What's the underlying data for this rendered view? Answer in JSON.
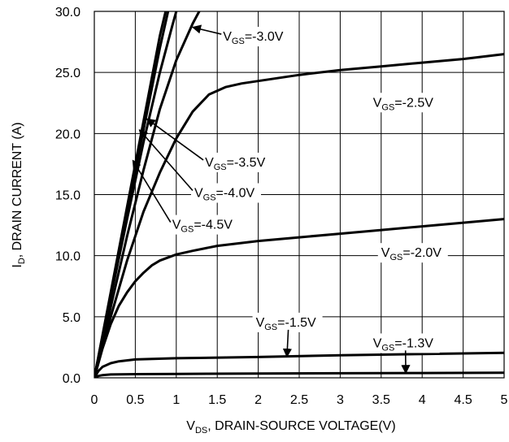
{
  "chart_data": {
    "type": "line",
    "xlabel_main": "V",
    "xlabel_sub": "DS",
    "xlabel_rest": ", DRAIN-SOURCE VOLTAGE(V)",
    "ylabel_main": "I",
    "ylabel_sub": "D",
    "ylabel_rest": ", DRAIN CURRENT (A)",
    "xlim": [
      0,
      5
    ],
    "ylim": [
      0,
      30
    ],
    "grid": true,
    "x_ticks": [
      {
        "value": 0,
        "label": "0"
      },
      {
        "value": 0.5,
        "label": "0.5"
      },
      {
        "value": 1,
        "label": "1"
      },
      {
        "value": 1.5,
        "label": "1.5"
      },
      {
        "value": 2,
        "label": "2"
      },
      {
        "value": 2.5,
        "label": "2.5"
      },
      {
        "value": 3,
        "label": "3"
      },
      {
        "value": 3.5,
        "label": "3.5"
      },
      {
        "value": 4,
        "label": "4"
      },
      {
        "value": 4.5,
        "label": "4.5"
      },
      {
        "value": 5,
        "label": "5"
      }
    ],
    "y_ticks": [
      {
        "value": 0,
        "label": "0.0"
      },
      {
        "value": 5,
        "label": "5.0"
      },
      {
        "value": 10,
        "label": "10.0"
      },
      {
        "value": 15,
        "label": "15.0"
      },
      {
        "value": 20,
        "label": "20.0"
      },
      {
        "value": 25,
        "label": "25.0"
      },
      {
        "value": 30,
        "label": "30.0"
      }
    ],
    "series": [
      {
        "name": "VGS=-4.5V",
        "label_main": "V",
        "label_sub": "GS",
        "label_rest": "=-4.5V",
        "x": [
          0,
          0.2,
          0.4,
          0.6,
          0.8,
          0.87
        ],
        "y": [
          0,
          7.0,
          14.0,
          21.0,
          28.0,
          30.0
        ]
      },
      {
        "name": "VGS=-4.0V",
        "label_main": "V",
        "label_sub": "GS",
        "label_rest": "=-4.0V",
        "x": [
          0,
          0.2,
          0.4,
          0.6,
          0.8,
          0.9
        ],
        "y": [
          0,
          6.8,
          13.6,
          20.3,
          27.0,
          30.0
        ]
      },
      {
        "name": "VGS=-3.5V",
        "label_main": "V",
        "label_sub": "GS",
        "label_rest": "=-3.5V",
        "x": [
          0,
          0.2,
          0.4,
          0.6,
          0.8,
          0.95,
          1.0
        ],
        "y": [
          0,
          6.6,
          13.0,
          19.3,
          25.0,
          28.8,
          30.0
        ]
      },
      {
        "name": "VGS=-3.0V",
        "label_main": "V",
        "label_sub": "GS",
        "label_rest": "=-3.0V",
        "x": [
          0,
          0.2,
          0.4,
          0.6,
          0.8,
          1.0,
          1.2,
          1.28
        ],
        "y": [
          0,
          5.8,
          11.6,
          17.0,
          22.0,
          26.0,
          29.0,
          30.0
        ]
      },
      {
        "name": "VGS=-2.5V",
        "label_main": "V",
        "label_sub": "GS",
        "label_rest": "=-2.5V",
        "x": [
          0,
          0.2,
          0.4,
          0.6,
          0.8,
          1.0,
          1.2,
          1.4,
          1.6,
          1.8,
          2.0,
          2.5,
          3.0,
          3.5,
          4.0,
          4.5,
          5.0
        ],
        "y": [
          0,
          5.0,
          9.6,
          13.6,
          16.8,
          19.6,
          21.8,
          23.2,
          23.8,
          24.1,
          24.3,
          24.8,
          25.2,
          25.5,
          25.8,
          26.1,
          26.5
        ]
      },
      {
        "name": "VGS=-2.0V",
        "label_main": "V",
        "label_sub": "GS",
        "label_rest": "=-2.0V",
        "x": [
          0,
          0.1,
          0.2,
          0.3,
          0.4,
          0.5,
          0.6,
          0.7,
          0.8,
          1.0,
          1.2,
          1.5,
          2.0,
          2.5,
          3.0,
          3.5,
          4.0,
          4.5,
          5.0
        ],
        "y": [
          0,
          2.4,
          4.4,
          5.9,
          7.0,
          7.9,
          8.6,
          9.2,
          9.6,
          10.1,
          10.4,
          10.8,
          11.2,
          11.5,
          11.8,
          12.1,
          12.4,
          12.7,
          13.0
        ]
      },
      {
        "name": "VGS=-1.5V",
        "label_main": "V",
        "label_sub": "GS",
        "label_rest": "=-1.5V",
        "x": [
          0,
          0.05,
          0.1,
          0.2,
          0.3,
          0.5,
          1.0,
          2.0,
          3.0,
          4.0,
          5.0
        ],
        "y": [
          0,
          0.55,
          0.9,
          1.2,
          1.35,
          1.5,
          1.6,
          1.7,
          1.85,
          1.95,
          2.05
        ]
      },
      {
        "name": "VGS=-1.3V",
        "label_main": "V",
        "label_sub": "GS",
        "label_rest": "=-1.3V",
        "x": [
          0,
          0.05,
          0.1,
          0.2,
          0.5,
          1.0,
          2.0,
          3.0,
          4.0,
          5.0
        ],
        "y": [
          0,
          0.15,
          0.22,
          0.27,
          0.3,
          0.32,
          0.35,
          0.37,
          0.39,
          0.42
        ]
      }
    ],
    "annotations": [
      {
        "series": 3,
        "label_pos": [
          1.57,
          27.6
        ],
        "arrow_to": [
          1.2,
          28.7
        ]
      },
      {
        "series": 4,
        "label_pos": [
          3.4,
          22.2
        ],
        "arrow_to": null
      },
      {
        "series": 2,
        "label_pos": [
          1.35,
          17.3
        ],
        "arrow_to": [
          0.64,
          21.2
        ]
      },
      {
        "series": 1,
        "label_pos": [
          1.22,
          14.8
        ],
        "arrow_to": [
          0.55,
          20.3
        ]
      },
      {
        "series": 0,
        "label_pos": [
          0.95,
          12.2
        ],
        "arrow_to": [
          0.47,
          17.8
        ]
      },
      {
        "series": 5,
        "label_pos": [
          3.5,
          9.9
        ],
        "arrow_to": null
      },
      {
        "series": 6,
        "label_pos": [
          1.97,
          4.2
        ],
        "arrow_to": [
          2.35,
          1.72
        ]
      },
      {
        "series": 7,
        "label_pos": [
          3.4,
          2.5
        ],
        "arrow_to": [
          3.8,
          0.38
        ]
      }
    ]
  }
}
